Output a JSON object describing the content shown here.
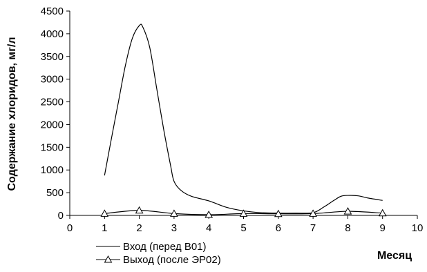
{
  "chart_data": {
    "type": "line",
    "xlabel": "Месяц",
    "ylabel": "Содержание хлоридов, мг/л",
    "xlim": [
      0,
      10
    ],
    "ylim": [
      0,
      4500
    ],
    "x_ticks": [
      "0",
      "1",
      "2",
      "3",
      "4",
      "5",
      "6",
      "7",
      "8",
      "9",
      "10"
    ],
    "y_ticks": [
      "0",
      "500",
      "1000",
      "1500",
      "2000",
      "2500",
      "3000",
      "3500",
      "4000",
      "4500"
    ],
    "grid": false,
    "legend_position": "bottom-left",
    "series": [
      {
        "name": "Вход  (перед В01)",
        "color": "#000000",
        "marker": "none",
        "x": [
          1,
          1.2,
          1.4,
          1.6,
          1.8,
          2.0,
          2.1,
          2.3,
          2.5,
          2.7,
          2.9,
          3.0,
          3.2,
          3.5,
          4.0,
          4.5,
          5.0,
          5.5,
          6.0,
          6.5,
          7.0,
          7.3,
          7.6,
          7.8,
          8.0,
          8.3,
          8.6,
          9.0
        ],
        "y": [
          880,
          1700,
          2500,
          3300,
          3900,
          4180,
          4150,
          3700,
          2800,
          1900,
          1100,
          750,
          550,
          420,
          320,
          180,
          100,
          60,
          50,
          50,
          60,
          180,
          330,
          420,
          440,
          430,
          380,
          330
        ]
      },
      {
        "name": "Выход (после ЭР02)",
        "color": "#000000",
        "marker": "triangle",
        "x": [
          1,
          2,
          3,
          4,
          5,
          6,
          7,
          8,
          9
        ],
        "y": [
          40,
          110,
          40,
          15,
          40,
          35,
          40,
          90,
          50
        ]
      }
    ]
  }
}
